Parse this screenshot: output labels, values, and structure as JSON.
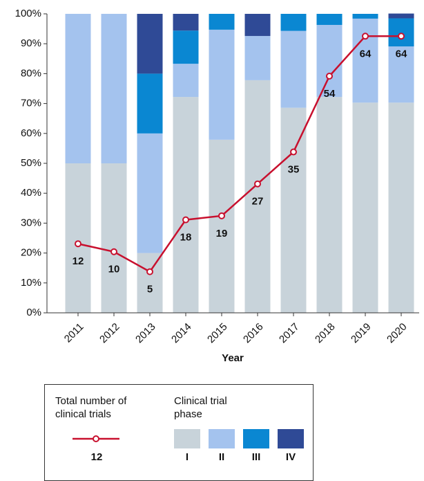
{
  "chart_data": {
    "type": "bar",
    "stacked": true,
    "x_label": "Year",
    "categories": [
      "2011",
      "2012",
      "2013",
      "2014",
      "2015",
      "2016",
      "2017",
      "2018",
      "2019",
      "2020"
    ],
    "series": [
      {
        "name": "I",
        "color": "#c8d3da",
        "values": [
          50,
          50,
          20,
          72.2,
          57.9,
          77.8,
          68.6,
          72.2,
          70.3,
          70.3
        ]
      },
      {
        "name": "II",
        "color": "#a4c3ee",
        "values": [
          50,
          50,
          40,
          11.1,
          36.8,
          14.8,
          25.7,
          24.1,
          28.1,
          18.8
        ]
      },
      {
        "name": "III",
        "color": "#0a87d2",
        "values": [
          0,
          0,
          20,
          11.1,
          5.3,
          0,
          5.7,
          3.7,
          1.6,
          9.4
        ]
      },
      {
        "name": "IV",
        "color": "#2f4a96",
        "values": [
          0,
          0,
          20,
          5.6,
          0,
          7.4,
          0,
          0,
          0,
          1.6
        ]
      },
      {
        "name": "Total number of clinical trials",
        "type": "line",
        "axis": "y2",
        "color": "#c8102e",
        "values": [
          12,
          10,
          5,
          18,
          19,
          27,
          35,
          54,
          64,
          64
        ]
      }
    ],
    "ylim": [
      0,
      100
    ],
    "yticks": [
      {
        "value": 0,
        "label": "0%"
      },
      {
        "value": 10,
        "label": "10%"
      },
      {
        "value": 20,
        "label": "20%"
      },
      {
        "value": 30,
        "label": "30%"
      },
      {
        "value": 40,
        "label": "40%"
      },
      {
        "value": 50,
        "label": "50%"
      },
      {
        "value": 60,
        "label": "60%"
      },
      {
        "value": 70,
        "label": "70%"
      },
      {
        "value": 80,
        "label": "80%"
      },
      {
        "value": 90,
        "label": "90%"
      },
      {
        "value": 100,
        "label": "100%"
      }
    ],
    "y2lim": [
      -5.3,
      69.6
    ],
    "legend_title": "Clinical trial phase",
    "legend_sample": "12"
  }
}
